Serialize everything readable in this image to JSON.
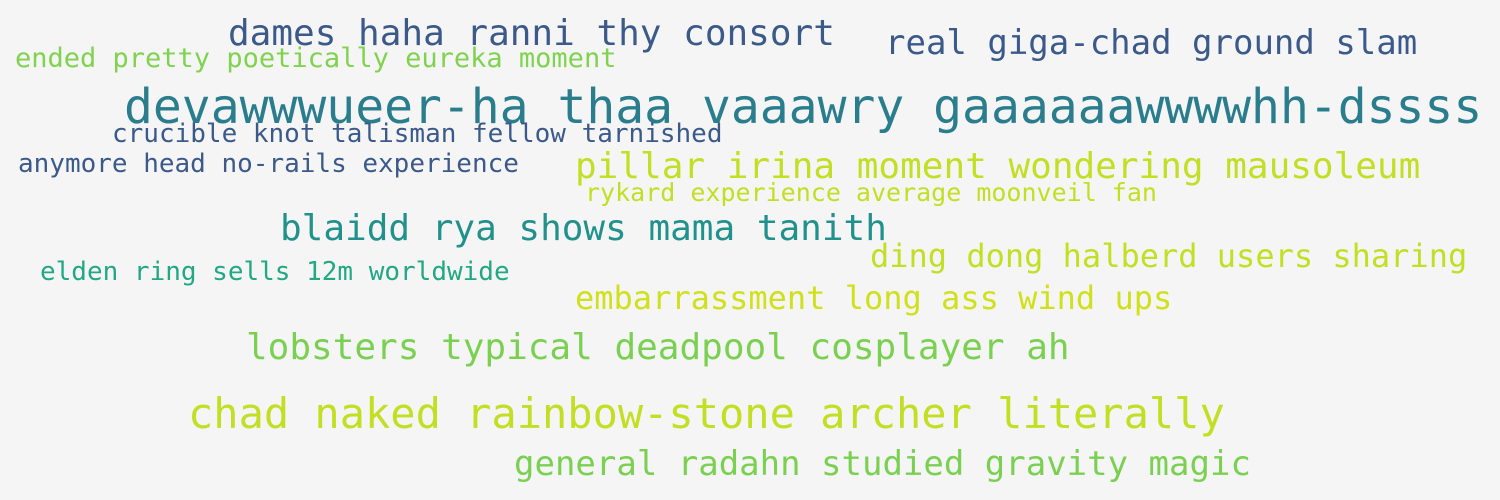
{
  "cloud": {
    "phrases": [
      {
        "text": "dames haha ranni thy consort",
        "color": "#3b5a8a"
      },
      {
        "text": "real giga-chad ground slam",
        "color": "#3b5a8a"
      },
      {
        "text": "ended pretty poetically eureka moment",
        "color": "#7fd34e"
      },
      {
        "text": "devawwwueer-ha thaa vaaawry gaaaaaawwwwhh-dssss",
        "color": "#2a7d8c"
      },
      {
        "text": "crucible knot talisman fellow tarnished",
        "color": "#3b5a8a"
      },
      {
        "text": "anymore head no-rails experience",
        "color": "#3b5a8a"
      },
      {
        "text": "pillar irina moment wondering mausoleum",
        "color": "#c2df23"
      },
      {
        "text": "rykard experience average moonveil fan",
        "color": "#c2df23"
      },
      {
        "text": "blaidd rya shows mama tanith",
        "color": "#21918c"
      },
      {
        "text": "ding dong halberd users sharing",
        "color": "#c2df23"
      },
      {
        "text": "elden ring sells 12m worldwide",
        "color": "#22a884"
      },
      {
        "text": "embarrassment long ass wind ups",
        "color": "#d0e11c"
      },
      {
        "text": "lobsters typical deadpool cosplayer ah",
        "color": "#7ad151"
      },
      {
        "text": "chad naked rainbow-stone archer literally",
        "color": "#c2df23"
      },
      {
        "text": "general radahn studied gravity magic",
        "color": "#7ad151"
      }
    ]
  }
}
